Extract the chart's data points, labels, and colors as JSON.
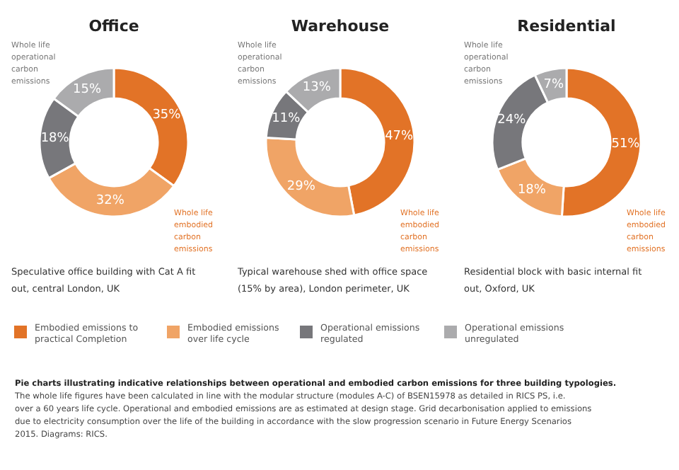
{
  "chart_data": [
    {
      "type": "donut",
      "title": "Office",
      "subtitle": "Speculative office building with Cat A fit out, central London, UK",
      "categories": [
        "Embodied emissions to practical Completion",
        "Embodied emissions over life cycle",
        "Operational emissions regulated",
        "Operational emissions unregulated"
      ],
      "values": [
        35,
        32,
        18,
        15
      ],
      "value_labels": [
        "35%",
        "32%",
        "18%",
        "15%"
      ],
      "colors": [
        "#e27327",
        "#f0a466",
        "#77777b",
        "#ababad"
      ],
      "annotations": [
        "Whole life operational carbon emissions",
        "Whole life embodied carbon emissions",
        "Pie charts illustrating indicative relationships between operational and embodied carbon emissions for three building typologies.",
        "The whole life figures have been calculated in line with the modular structure (modules A-C) of BSEN15978 as detailed in RICS PS, i.e. over a 60 years life cycle. Operational and embodied emissions are as estimated at design stage. Grid decarbonisation applied to emissions due to electricity consumption over the life of the building in accordance with the slow progression scenario in Future Energy Scenarios 2015. Diagrams: RICS."
      ],
      "legend": "bottom"
    },
    {
      "type": "donut",
      "title": "Warehouse",
      "subtitle": "Typical warehouse shed with office space (15% by area), London perimeter, UK",
      "categories": [
        null,
        null,
        null,
        null
      ],
      "values": [
        47,
        29,
        11,
        13
      ],
      "value_labels": [
        "47%",
        "29%",
        "11%",
        "13%"
      ],
      "colors": [
        "#e27327",
        "#f0a466",
        "#77777b",
        "#ababad"
      ],
      "annotations": [
        "Whole life operational carbon emissions",
        "Whole life embodied carbon emissions"
      ]
    },
    {
      "type": "donut",
      "title": "Residential",
      "subtitle": "Residential block with basic internal fit out, Oxford, UK",
      "categories": [
        null,
        null,
        null,
        null
      ],
      "values": [
        51,
        18,
        24,
        7
      ],
      "value_labels": [
        "51%",
        "18%",
        "24%",
        "7%"
      ],
      "colors": [
        "#e27327",
        "#f0a466",
        "#77777b",
        "#ababad"
      ],
      "annotations": [
        "Whole life operational carbon emissions",
        "Whole life embodied carbon emissions"
      ]
    }
  ]
}
